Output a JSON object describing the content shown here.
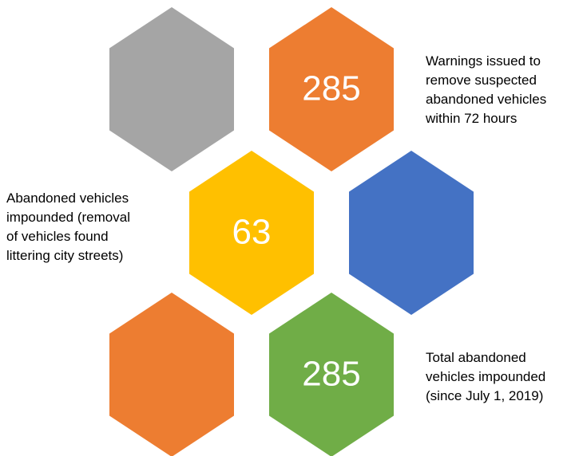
{
  "hexagons": [
    {
      "color": "#a5a5a5"
    },
    {
      "color": "#ed7d31",
      "value": "285"
    },
    {
      "color": "#ffc000",
      "value": "63"
    },
    {
      "color": "#4472c4"
    },
    {
      "color": "#ed7d31"
    },
    {
      "color": "#70ad47",
      "value": "285"
    }
  ],
  "labels": [
    {
      "lines": [
        "Warnings issued to",
        "remove suspected",
        "abandoned vehicles",
        "within 72 hours"
      ]
    },
    {
      "lines": [
        "Abandoned vehicles",
        "impounded (removal",
        "of vehicles found",
        "littering city streets)"
      ]
    },
    {
      "lines": [
        "Total abandoned",
        "vehicles impounded",
        "(since July 1, 2019)"
      ]
    }
  ]
}
